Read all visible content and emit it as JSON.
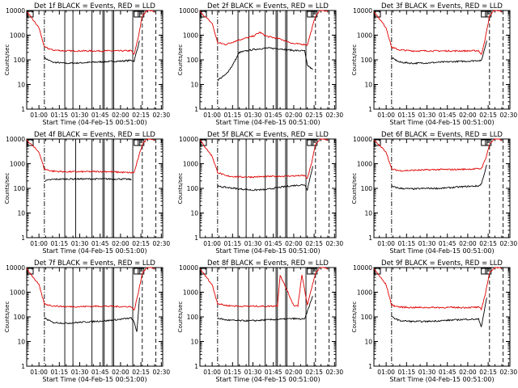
{
  "colors": {
    "events": "#000000",
    "lld": "#e00000",
    "axes": "#000000",
    "background": "#ffffff"
  },
  "chart_data": [
    {
      "type": "line",
      "title": "Det 1f BLACK = Events, RED = LLD",
      "xlabel": "Start Time (04-Feb-15 00:51:00)",
      "ylabel": "Counts/sec",
      "yscale": "log",
      "ylim": [
        1,
        10000
      ],
      "xlim": [
        "00:51",
        "02:31"
      ],
      "x_ticks": [
        "01:00",
        "01:15",
        "01:30",
        "01:45",
        "02:00",
        "02:15",
        "02:30"
      ],
      "y_ticks": [
        "1",
        "10",
        "100",
        "1000",
        "10000"
      ],
      "series": [
        {
          "name": "Events",
          "x": [
            "01:04",
            "01:10",
            "01:20",
            "01:30",
            "01:40",
            "01:50",
            "02:00",
            "02:08",
            "02:10",
            "02:14"
          ],
          "y": [
            120,
            80,
            72,
            75,
            80,
            85,
            88,
            95,
            90,
            600
          ]
        },
        {
          "name": "LLD",
          "x": [
            "00:51",
            "01:00",
            "01:04",
            "01:10",
            "01:20",
            "01:30",
            "01:40",
            "01:50",
            "02:00",
            "02:08",
            "02:10",
            "02:13",
            "02:16",
            "02:20",
            "02:25"
          ],
          "y": [
            9000,
            2000,
            330,
            250,
            230,
            230,
            230,
            230,
            230,
            235,
            160,
            800,
            6000,
            11000,
            9000
          ]
        }
      ],
      "vertical_lines_solid": [
        "01:19",
        "01:25",
        "01:39",
        "01:47",
        "01:48",
        "01:54",
        "01:55",
        "02:09"
      ],
      "vertical_lines_dashed": [
        "01:04",
        "02:16",
        "02:26"
      ]
    },
    {
      "type": "line",
      "title": "Det 2f BLACK = Events, RED = LLD",
      "xlabel": "Start Time (04-Feb-15 00:51:00)",
      "ylabel": "Counts/sec",
      "yscale": "log",
      "ylim": [
        1,
        10000
      ],
      "xlim": [
        "00:51",
        "02:31"
      ],
      "x_ticks": [
        "01:00",
        "01:15",
        "01:30",
        "01:45",
        "02:00",
        "02:15",
        "02:30"
      ],
      "y_ticks": [
        "1",
        "10",
        "100",
        "1000",
        "10000"
      ],
      "series": [
        {
          "name": "Events",
          "x": [
            "01:04",
            "01:10",
            "01:15",
            "01:20",
            "01:30",
            "01:40",
            "01:50",
            "02:00",
            "02:08",
            "02:10",
            "02:14"
          ],
          "y": [
            15,
            25,
            60,
            200,
            260,
            300,
            280,
            240,
            230,
            60,
            40
          ]
        },
        {
          "name": "LLD",
          "x": [
            "00:51",
            "01:00",
            "01:04",
            "01:10",
            "01:20",
            "01:30",
            "01:35",
            "01:40",
            "01:50",
            "02:00",
            "02:08",
            "02:10",
            "02:16",
            "02:20",
            "02:25"
          ],
          "y": [
            9000,
            3000,
            500,
            420,
            650,
            900,
            1300,
            900,
            700,
            450,
            420,
            400,
            6000,
            11000,
            9000
          ]
        }
      ],
      "vertical_lines_solid": [
        "01:19",
        "01:27",
        "01:39",
        "01:47",
        "01:48",
        "01:54",
        "01:55",
        "02:09"
      ],
      "vertical_lines_dashed": [
        "01:04",
        "02:16",
        "02:26"
      ]
    },
    {
      "type": "line",
      "title": "Det 3f BLACK = Events, RED = LLD",
      "xlabel": "Start Time (04-Feb-15 00:51:00)",
      "ylabel": "Counts/sec",
      "yscale": "log",
      "ylim": [
        1,
        10000
      ],
      "xlim": [
        "00:51",
        "02:31"
      ],
      "x_ticks": [
        "01:00",
        "01:15",
        "01:30",
        "01:45",
        "02:00",
        "02:15",
        "02:30"
      ],
      "y_ticks": [
        "1",
        "10",
        "100",
        "1000",
        "10000"
      ],
      "series": [
        {
          "name": "Events",
          "x": [
            "01:04",
            "01:10",
            "01:20",
            "01:30",
            "01:40",
            "01:50",
            "02:00",
            "02:08",
            "02:10",
            "02:14"
          ],
          "y": [
            120,
            80,
            72,
            75,
            80,
            85,
            88,
            95,
            90,
            600
          ]
        },
        {
          "name": "LLD",
          "x": [
            "00:51",
            "01:00",
            "01:04",
            "01:10",
            "01:20",
            "01:30",
            "01:40",
            "01:50",
            "02:00",
            "02:08",
            "02:10",
            "02:13",
            "02:16",
            "02:20",
            "02:25"
          ],
          "y": [
            9000,
            2000,
            320,
            250,
            230,
            230,
            230,
            230,
            230,
            235,
            160,
            800,
            6000,
            11000,
            9000
          ]
        }
      ],
      "vertical_lines_solid": [],
      "vertical_lines_dashed": [
        "01:04",
        "02:16",
        "02:26"
      ]
    },
    {
      "type": "line",
      "title": "Det 4f BLACK = Events, RED = LLD",
      "xlabel": "Start Time (04-Feb-15 00:51:00)",
      "ylabel": "Counts/sec",
      "yscale": "log",
      "ylim": [
        1,
        10000
      ],
      "xlim": [
        "00:51",
        "02:31"
      ],
      "x_ticks": [
        "01:00",
        "01:15",
        "01:30",
        "01:45",
        "02:00",
        "02:15",
        "02:30"
      ],
      "y_ticks": [
        "1",
        "10",
        "100",
        "1000",
        "10000"
      ],
      "series": [
        {
          "name": "Events",
          "x": [
            "01:04",
            "01:10",
            "01:20",
            "01:30",
            "01:40",
            "01:50",
            "02:00",
            "02:08"
          ],
          "y": [
            200,
            230,
            240,
            240,
            240,
            240,
            240,
            230
          ]
        },
        {
          "name": "LLD",
          "x": [
            "00:51",
            "01:00",
            "01:04",
            "01:10",
            "01:20",
            "01:30",
            "01:40",
            "01:50",
            "02:00",
            "02:08",
            "02:10",
            "02:16",
            "02:20",
            "02:25"
          ],
          "y": [
            9000,
            3000,
            600,
            500,
            470,
            470,
            480,
            480,
            450,
            430,
            440,
            6000,
            11000,
            9000
          ]
        }
      ],
      "vertical_lines_solid": [
        "01:19",
        "01:27",
        "01:39",
        "01:47",
        "01:48",
        "01:54",
        "01:55",
        "02:09"
      ],
      "vertical_lines_dashed": [
        "01:04",
        "02:16",
        "02:26"
      ]
    },
    {
      "type": "line",
      "title": "Det 5f BLACK = Events, RED = LLD",
      "xlabel": "Start Time (04-Feb-15 00:51:00)",
      "ylabel": "Counts/sec",
      "yscale": "log",
      "ylim": [
        1,
        10000
      ],
      "xlim": [
        "00:51",
        "02:31"
      ],
      "x_ticks": [
        "01:00",
        "01:15",
        "01:30",
        "01:45",
        "02:00",
        "02:15",
        "02:30"
      ],
      "y_ticks": [
        "1",
        "10",
        "100",
        "1000",
        "10000"
      ],
      "series": [
        {
          "name": "Events",
          "x": [
            "01:04",
            "01:10",
            "01:20",
            "01:30",
            "01:40",
            "01:50",
            "02:00",
            "02:08",
            "02:10",
            "02:14"
          ],
          "y": [
            120,
            110,
            95,
            85,
            90,
            110,
            130,
            140,
            90,
            800
          ]
        },
        {
          "name": "LLD",
          "x": [
            "00:51",
            "01:00",
            "01:04",
            "01:10",
            "01:20",
            "01:30",
            "01:40",
            "01:50",
            "02:00",
            "02:08",
            "02:10",
            "02:13",
            "02:16",
            "02:20",
            "02:25"
          ],
          "y": [
            9000,
            2000,
            450,
            320,
            290,
            290,
            300,
            310,
            320,
            330,
            250,
            1000,
            6000,
            11000,
            9000
          ]
        }
      ],
      "vertical_lines_solid": [
        "01:19",
        "01:25",
        "01:39",
        "01:47",
        "01:48",
        "01:54",
        "01:55",
        "02:09"
      ],
      "vertical_lines_dashed": [
        "01:04",
        "02:16",
        "02:26"
      ]
    },
    {
      "type": "line",
      "title": "Det 6f BLACK = Events, RED = LLD",
      "xlabel": "Start Time (04-Feb-15 00:51:00)",
      "ylabel": "Counts/sec",
      "yscale": "log",
      "ylim": [
        1,
        10000
      ],
      "xlim": [
        "00:51",
        "02:31"
      ],
      "x_ticks": [
        "01:00",
        "01:15",
        "01:30",
        "01:45",
        "02:00",
        "02:15",
        "02:30"
      ],
      "y_ticks": [
        "1",
        "10",
        "100",
        "1000",
        "10000"
      ],
      "series": [
        {
          "name": "Events",
          "x": [
            "01:04",
            "01:10",
            "01:20",
            "01:30",
            "01:40",
            "01:50",
            "02:00",
            "02:08",
            "02:10",
            "02:14"
          ],
          "y": [
            120,
            100,
            95,
            100,
            100,
            110,
            120,
            125,
            150,
            900
          ]
        },
        {
          "name": "LLD",
          "x": [
            "00:51",
            "01:00",
            "01:04",
            "01:10",
            "01:20",
            "01:30",
            "01:40",
            "01:50",
            "02:00",
            "02:08",
            "02:10",
            "02:13",
            "02:16",
            "02:20",
            "02:25"
          ],
          "y": [
            9000,
            3000,
            600,
            520,
            540,
            560,
            580,
            580,
            600,
            620,
            640,
            1500,
            6000,
            11000,
            9000
          ]
        }
      ],
      "vertical_lines_solid": [],
      "vertical_lines_dashed": [
        "01:04",
        "02:16",
        "02:26"
      ]
    },
    {
      "type": "line",
      "title": "Det 7f BLACK = Events, RED = LLD",
      "xlabel": "Start Time (04-Feb-15 00:51:00)",
      "ylabel": "Counts/sec",
      "yscale": "log",
      "ylim": [
        1,
        10000
      ],
      "xlim": [
        "00:51",
        "02:31"
      ],
      "x_ticks": [
        "01:00",
        "01:15",
        "01:30",
        "01:45",
        "02:00",
        "02:15",
        "02:30"
      ],
      "y_ticks": [
        "1",
        "10",
        "100",
        "1000",
        "10000"
      ],
      "series": [
        {
          "name": "Events",
          "x": [
            "01:04",
            "01:10",
            "01:20",
            "01:30",
            "01:40",
            "01:50",
            "02:00",
            "02:08",
            "02:10",
            "02:12",
            "02:14"
          ],
          "y": [
            90,
            60,
            55,
            60,
            65,
            70,
            80,
            90,
            60,
            25,
            600
          ]
        },
        {
          "name": "LLD",
          "x": [
            "00:51",
            "01:00",
            "01:04",
            "01:10",
            "01:20",
            "01:30",
            "01:40",
            "01:50",
            "02:00",
            "02:08",
            "02:10",
            "02:13",
            "02:16",
            "02:20",
            "02:25"
          ],
          "y": [
            9000,
            2000,
            330,
            280,
            260,
            260,
            270,
            270,
            260,
            260,
            180,
            900,
            6000,
            11000,
            9000
          ]
        }
      ],
      "vertical_lines_solid": [
        "01:19",
        "01:25",
        "01:39",
        "01:47",
        "01:48",
        "01:54",
        "01:55",
        "02:09"
      ],
      "vertical_lines_dashed": [
        "01:04",
        "02:16",
        "02:26"
      ]
    },
    {
      "type": "line",
      "title": "Det 8f BLACK = Events, RED = LLD",
      "xlabel": "Start Time (04-Feb-15 00:51:00)",
      "ylabel": "Counts/sec",
      "yscale": "log",
      "ylim": [
        1,
        10000
      ],
      "xlim": [
        "00:51",
        "02:31"
      ],
      "x_ticks": [
        "01:00",
        "01:15",
        "01:30",
        "01:45",
        "02:00",
        "02:15",
        "02:30"
      ],
      "y_ticks": [
        "1",
        "10",
        "100",
        "1000",
        "10000"
      ],
      "series": [
        {
          "name": "Events",
          "x": [
            "01:04",
            "01:10",
            "01:20",
            "01:30",
            "01:40",
            "01:50",
            "02:00",
            "02:08",
            "02:14"
          ],
          "y": [
            90,
            75,
            70,
            70,
            75,
            80,
            85,
            80,
            700
          ]
        },
        {
          "name": "LLD",
          "x": [
            "00:51",
            "01:00",
            "01:04",
            "01:10",
            "01:20",
            "01:30",
            "01:40",
            "01:48",
            "01:50",
            "02:00",
            "02:03",
            "02:06",
            "02:10",
            "02:16",
            "02:20",
            "02:25"
          ],
          "y": [
            9000,
            2000,
            350,
            290,
            270,
            270,
            270,
            280,
            5000,
            290,
            280,
            5000,
            300,
            6000,
            11000,
            9000
          ]
        }
      ],
      "vertical_lines_solid": [
        "01:19",
        "01:27",
        "01:39",
        "01:47",
        "01:48",
        "01:54",
        "01:55",
        "02:09"
      ],
      "vertical_lines_dashed": [
        "01:04",
        "02:16",
        "02:26"
      ]
    },
    {
      "type": "line",
      "title": "Det 9f BLACK = Events, RED = LLD",
      "xlabel": "Start Time (04-Feb-15 00:51:00)",
      "ylabel": "Counts/sec",
      "yscale": "log",
      "ylim": [
        1,
        10000
      ],
      "xlim": [
        "00:51",
        "02:31"
      ],
      "x_ticks": [
        "01:00",
        "01:15",
        "01:30",
        "01:45",
        "02:00",
        "02:15",
        "02:30"
      ],
      "y_ticks": [
        "1",
        "10",
        "100",
        "1000",
        "10000"
      ],
      "series": [
        {
          "name": "Events",
          "x": [
            "01:04",
            "01:10",
            "01:20",
            "01:30",
            "01:40",
            "01:50",
            "02:00",
            "02:08",
            "02:10",
            "02:14"
          ],
          "y": [
            100,
            70,
            65,
            65,
            70,
            75,
            80,
            80,
            40,
            600
          ]
        },
        {
          "name": "LLD",
          "x": [
            "00:51",
            "01:00",
            "01:04",
            "01:10",
            "01:20",
            "01:30",
            "01:40",
            "01:50",
            "02:00",
            "02:08",
            "02:10",
            "02:13",
            "02:16",
            "02:20",
            "02:25"
          ],
          "y": [
            9000,
            2000,
            300,
            250,
            240,
            240,
            240,
            240,
            240,
            245,
            200,
            900,
            6000,
            11000,
            9000
          ]
        }
      ],
      "vertical_lines_solid": [],
      "vertical_lines_dashed": [
        "01:04",
        "02:16",
        "02:26"
      ]
    }
  ]
}
